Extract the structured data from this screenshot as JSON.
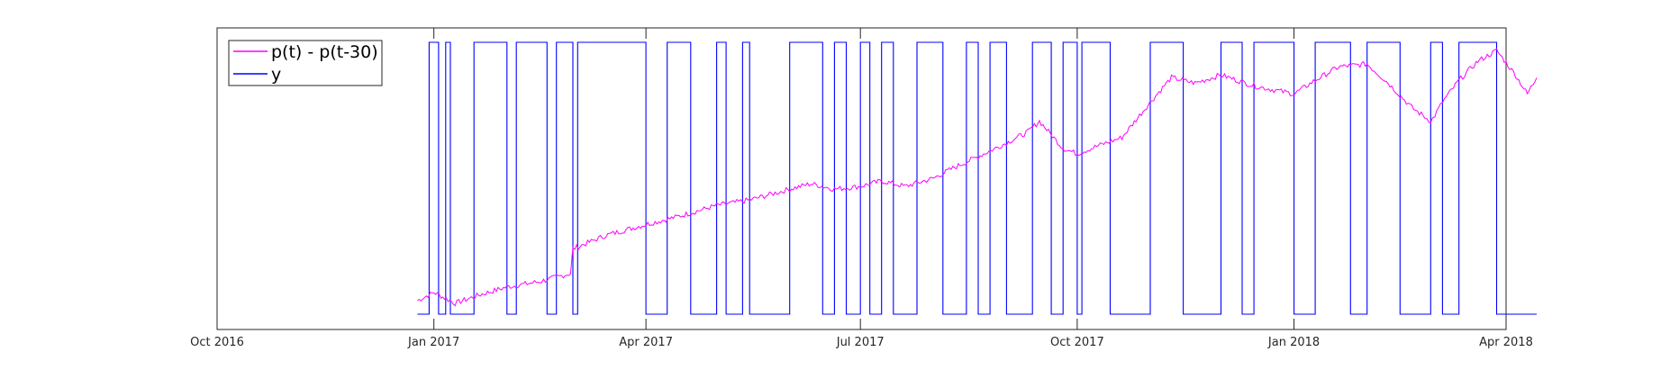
{
  "chart_data": {
    "type": "line",
    "title": "",
    "xlabel": "",
    "ylabel": "",
    "x_range": [
      "2016-10-01",
      "2018-04-01"
    ],
    "x_ticks": [
      {
        "date": "2016-10-01",
        "label": "Oct 2016"
      },
      {
        "date": "2017-01-01",
        "label": "Jan 2017"
      },
      {
        "date": "2017-04-01",
        "label": "Apr 2017"
      },
      {
        "date": "2017-07-01",
        "label": "Jul 2017"
      },
      {
        "date": "2017-10-01",
        "label": "Oct 2017"
      },
      {
        "date": "2018-01-01",
        "label": "Jan 2018"
      },
      {
        "date": "2018-04-01",
        "label": "Apr 2018"
      }
    ],
    "y_ticks_visible": false,
    "grid": false,
    "legend_position": "top-left",
    "series": [
      {
        "name": "p(t) - p(t-30)",
        "color": "#ff00ff",
        "points": [
          [
            "2016-12-25",
            0.05
          ],
          [
            "2017-01-01",
            0.08
          ],
          [
            "2017-01-10",
            0.04
          ],
          [
            "2017-01-20",
            0.07
          ],
          [
            "2017-02-01",
            0.1
          ],
          [
            "2017-02-15",
            0.12
          ],
          [
            "2017-02-28",
            0.15
          ],
          [
            "2017-03-01",
            0.24
          ],
          [
            "2017-03-15",
            0.29
          ],
          [
            "2017-04-01",
            0.33
          ],
          [
            "2017-04-15",
            0.36
          ],
          [
            "2017-05-01",
            0.4
          ],
          [
            "2017-05-15",
            0.42
          ],
          [
            "2017-06-01",
            0.46
          ],
          [
            "2017-06-10",
            0.48
          ],
          [
            "2017-06-20",
            0.46
          ],
          [
            "2017-07-01",
            0.47
          ],
          [
            "2017-07-10",
            0.49
          ],
          [
            "2017-07-20",
            0.47
          ],
          [
            "2017-08-01",
            0.5
          ],
          [
            "2017-08-10",
            0.54
          ],
          [
            "2017-08-20",
            0.58
          ],
          [
            "2017-09-01",
            0.63
          ],
          [
            "2017-09-10",
            0.67
          ],
          [
            "2017-09-15",
            0.71
          ],
          [
            "2017-09-25",
            0.61
          ],
          [
            "2017-10-01",
            0.59
          ],
          [
            "2017-10-10",
            0.62
          ],
          [
            "2017-10-20",
            0.65
          ],
          [
            "2017-11-01",
            0.78
          ],
          [
            "2017-11-10",
            0.87
          ],
          [
            "2017-11-20",
            0.85
          ],
          [
            "2017-12-01",
            0.88
          ],
          [
            "2017-12-15",
            0.84
          ],
          [
            "2018-01-01",
            0.81
          ],
          [
            "2018-01-10",
            0.86
          ],
          [
            "2018-01-20",
            0.91
          ],
          [
            "2018-02-01",
            0.92
          ],
          [
            "2018-02-10",
            0.85
          ],
          [
            "2018-02-20",
            0.76
          ],
          [
            "2018-02-28",
            0.71
          ],
          [
            "2018-03-01",
            0.72
          ],
          [
            "2018-03-05",
            0.78
          ],
          [
            "2018-03-12",
            0.86
          ],
          [
            "2018-03-20",
            0.93
          ],
          [
            "2018-03-28",
            0.97
          ],
          [
            "2018-04-05",
            0.88
          ],
          [
            "2018-04-10",
            0.81
          ],
          [
            "2018-04-14",
            0.87
          ]
        ]
      },
      {
        "name": "y",
        "color": "#0000ff",
        "transitions": [
          [
            "2016-12-25",
            0
          ],
          [
            "2016-12-30",
            1
          ],
          [
            "2017-01-03",
            0
          ],
          [
            "2017-01-06",
            1
          ],
          [
            "2017-01-08",
            0
          ],
          [
            "2017-01-18",
            1
          ],
          [
            "2017-02-01",
            0
          ],
          [
            "2017-02-05",
            1
          ],
          [
            "2017-02-18",
            0
          ],
          [
            "2017-02-22",
            1
          ],
          [
            "2017-03-01",
            0
          ],
          [
            "2017-03-03",
            1
          ],
          [
            "2017-04-01",
            0
          ],
          [
            "2017-04-10",
            1
          ],
          [
            "2017-04-20",
            0
          ],
          [
            "2017-05-01",
            1
          ],
          [
            "2017-05-05",
            0
          ],
          [
            "2017-05-12",
            1
          ],
          [
            "2017-05-15",
            0
          ],
          [
            "2017-06-01",
            1
          ],
          [
            "2017-06-15",
            0
          ],
          [
            "2017-06-20",
            1
          ],
          [
            "2017-06-25",
            0
          ],
          [
            "2017-07-01",
            1
          ],
          [
            "2017-07-05",
            0
          ],
          [
            "2017-07-10",
            1
          ],
          [
            "2017-07-15",
            0
          ],
          [
            "2017-07-25",
            1
          ],
          [
            "2017-08-05",
            0
          ],
          [
            "2017-08-15",
            1
          ],
          [
            "2017-08-20",
            0
          ],
          [
            "2017-08-25",
            1
          ],
          [
            "2017-09-01",
            0
          ],
          [
            "2017-09-12",
            1
          ],
          [
            "2017-09-20",
            0
          ],
          [
            "2017-09-25",
            1
          ],
          [
            "2017-10-01",
            0
          ],
          [
            "2017-10-03",
            1
          ],
          [
            "2017-10-15",
            0
          ],
          [
            "2017-11-01",
            1
          ],
          [
            "2017-11-15",
            0
          ],
          [
            "2017-12-01",
            1
          ],
          [
            "2017-12-10",
            0
          ],
          [
            "2017-12-15",
            1
          ],
          [
            "2018-01-01",
            0
          ],
          [
            "2018-01-10",
            1
          ],
          [
            "2018-01-25",
            0
          ],
          [
            "2018-02-01",
            1
          ],
          [
            "2018-02-15",
            0
          ],
          [
            "2018-02-28",
            1
          ],
          [
            "2018-03-05",
            0
          ],
          [
            "2018-03-12",
            1
          ],
          [
            "2018-03-28",
            0
          ],
          [
            "2018-04-14",
            0
          ]
        ]
      }
    ]
  }
}
